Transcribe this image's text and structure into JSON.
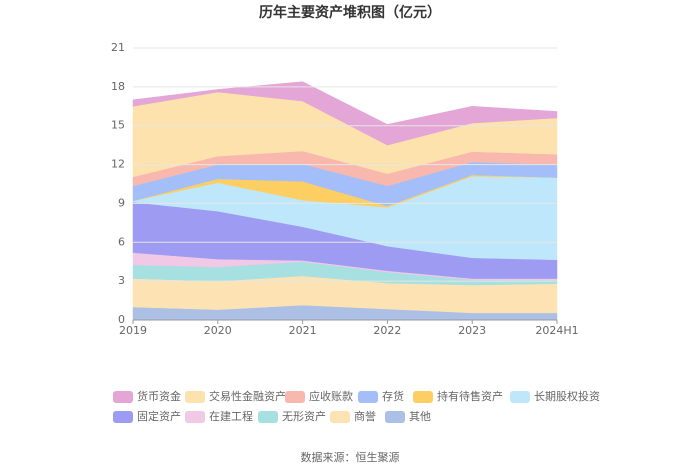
{
  "chart_data": {
    "type": "stacked-area",
    "title": "历年主要资产堆积图（亿元）",
    "categories": [
      "2019",
      "2020",
      "2021",
      "2022",
      "2023",
      "2024H1"
    ],
    "ylim": [
      0,
      21
    ],
    "yticks": [
      0,
      3,
      6,
      9,
      12,
      15,
      18,
      21
    ],
    "grid": true,
    "series": [
      {
        "name": "货币资金",
        "color": "#e3a6d6",
        "values": [
          0.5,
          0.2,
          1.5,
          1.6,
          1.3,
          0.5
        ]
      },
      {
        "name": "交易性金融资产",
        "color": "#fde2ad",
        "values": [
          5.45,
          4.95,
          3.85,
          2.2,
          2.2,
          2.8
        ]
      },
      {
        "name": "应收账款",
        "color": "#f9b8ae",
        "values": [
          0.7,
          0.65,
          1.0,
          0.95,
          0.8,
          0.8
        ]
      },
      {
        "name": "存货",
        "color": "#a3bef8",
        "values": [
          1.15,
          1.1,
          1.35,
          1.55,
          1.0,
          1.0
        ]
      },
      {
        "name": "持有待售资产",
        "color": "#fdcf62",
        "values": [
          0,
          0.3,
          1.45,
          0.1,
          0.1,
          0
        ]
      },
      {
        "name": "长期股权投资",
        "color": "#bfe7fb",
        "values": [
          0.1,
          2.2,
          2.05,
          3.0,
          6.3,
          6.35
        ]
      },
      {
        "name": "固定资产",
        "color": "#9e9cf2",
        "values": [
          3.9,
          3.7,
          2.6,
          1.9,
          1.6,
          1.45
        ]
      },
      {
        "name": "在建工程",
        "color": "#f1c8e6",
        "values": [
          0.95,
          0.6,
          0.1,
          0.1,
          0.1,
          0.1
        ]
      },
      {
        "name": "无形资产",
        "color": "#a6e0e1",
        "values": [
          1.05,
          1.1,
          1.1,
          0.85,
          0.4,
          0.3
        ]
      },
      {
        "name": "商誉",
        "color": "#fde3b3",
        "values": [
          2.2,
          2.2,
          2.25,
          2.0,
          2.15,
          2.25
        ]
      },
      {
        "name": "其他",
        "color": "#abc0e4",
        "values": [
          1.0,
          0.8,
          1.15,
          0.85,
          0.55,
          0.55
        ]
      }
    ],
    "source": "数据来源：恒生聚源"
  }
}
